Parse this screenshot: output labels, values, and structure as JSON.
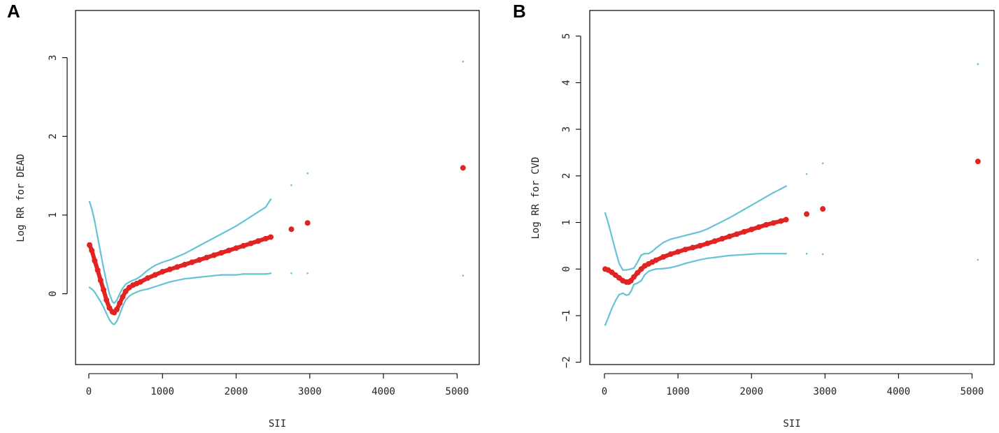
{
  "chart_data": [
    {
      "panel_label": "A",
      "type": "line",
      "xlabel": "SII",
      "ylabel": "Log RR for DEAD",
      "xlim": [
        -180,
        5300
      ],
      "ylim": [
        -0.9,
        3.6
      ],
      "x_ticks": [
        0,
        1000,
        2000,
        3000,
        4000,
        5000
      ],
      "y_ticks": [
        0,
        1,
        2,
        3
      ],
      "grid": false,
      "colors": {
        "estimate": "#e02424",
        "ci": "#66c4d4"
      },
      "series": [
        {
          "role": "estimate",
          "style": "dots",
          "x": [
            10,
            40,
            80,
            120,
            160,
            200,
            240,
            280,
            320,
            345,
            380,
            420,
            460,
            500,
            550,
            600,
            650,
            700,
            800,
            900,
            1000,
            1100,
            1200,
            1300,
            1400,
            1500,
            1600,
            1700,
            1800,
            1900,
            2000,
            2100,
            2200,
            2300,
            2400,
            2470
          ],
          "y": [
            0.62,
            0.55,
            0.42,
            0.3,
            0.17,
            0.05,
            -0.08,
            -0.18,
            -0.23,
            -0.24,
            -0.2,
            -0.12,
            -0.04,
            0.03,
            0.08,
            0.11,
            0.13,
            0.15,
            0.2,
            0.24,
            0.28,
            0.31,
            0.34,
            0.37,
            0.4,
            0.43,
            0.46,
            0.49,
            0.52,
            0.55,
            0.58,
            0.61,
            0.64,
            0.67,
            0.7,
            0.72
          ]
        },
        {
          "role": "upper_ci",
          "style": "dotted-line",
          "x": [
            10,
            40,
            80,
            120,
            160,
            200,
            240,
            280,
            320,
            345,
            380,
            420,
            460,
            500,
            550,
            600,
            650,
            700,
            800,
            900,
            1000,
            1100,
            1200,
            1300,
            1400,
            1500,
            1600,
            1700,
            1800,
            1900,
            2000,
            2100,
            2200,
            2300,
            2400,
            2470
          ],
          "y": [
            1.17,
            1.08,
            0.92,
            0.72,
            0.52,
            0.33,
            0.15,
            0.0,
            -0.1,
            -0.12,
            -0.08,
            0.0,
            0.07,
            0.12,
            0.15,
            0.17,
            0.19,
            0.22,
            0.3,
            0.36,
            0.4,
            0.43,
            0.47,
            0.51,
            0.56,
            0.61,
            0.66,
            0.71,
            0.76,
            0.81,
            0.86,
            0.92,
            0.98,
            1.04,
            1.1,
            1.2
          ]
        },
        {
          "role": "lower_ci",
          "style": "dotted-line",
          "x": [
            10,
            40,
            80,
            120,
            160,
            200,
            240,
            280,
            320,
            345,
            380,
            420,
            460,
            500,
            550,
            600,
            650,
            700,
            800,
            900,
            1000,
            1100,
            1200,
            1300,
            1400,
            1500,
            1600,
            1700,
            1800,
            1900,
            2000,
            2100,
            2200,
            2300,
            2400,
            2470
          ],
          "y": [
            0.08,
            0.06,
            0.02,
            -0.04,
            -0.1,
            -0.17,
            -0.25,
            -0.33,
            -0.38,
            -0.39,
            -0.35,
            -0.26,
            -0.16,
            -0.08,
            -0.03,
            0.0,
            0.02,
            0.04,
            0.06,
            0.09,
            0.12,
            0.15,
            0.17,
            0.19,
            0.2,
            0.21,
            0.22,
            0.23,
            0.24,
            0.24,
            0.24,
            0.25,
            0.25,
            0.25,
            0.25,
            0.26
          ]
        },
        {
          "role": "estimate",
          "style": "dots",
          "x": [
            2750,
            2970,
            5080
          ],
          "y": [
            0.82,
            0.9,
            1.6
          ]
        },
        {
          "role": "upper_ci",
          "style": "dots-small",
          "x": [
            2750,
            2970,
            5080
          ],
          "y": [
            1.38,
            1.53,
            2.95
          ]
        },
        {
          "role": "lower_ci",
          "style": "dots-small",
          "x": [
            2750,
            2970,
            5080
          ],
          "y": [
            0.26,
            0.26,
            0.23
          ]
        }
      ]
    },
    {
      "panel_label": "B",
      "type": "line",
      "xlabel": "SII",
      "ylabel": "Log RR for CVD",
      "xlim": [
        -200,
        5300
      ],
      "ylim": [
        -2.05,
        5.55
      ],
      "x_ticks": [
        0,
        1000,
        2000,
        3000,
        4000,
        5000
      ],
      "y_ticks": [
        -2,
        -1,
        0,
        1,
        2,
        3,
        4,
        5
      ],
      "y_tick_labels": [
        "−2",
        "−1",
        "0",
        "1",
        "2",
        "3",
        "4",
        "5"
      ],
      "grid": false,
      "colors": {
        "estimate": "#e02424",
        "ci": "#66c4d4"
      },
      "series": [
        {
          "role": "estimate",
          "style": "dots",
          "x": [
            10,
            50,
            100,
            150,
            200,
            250,
            300,
            330,
            360,
            400,
            450,
            500,
            550,
            600,
            650,
            700,
            800,
            900,
            1000,
            1100,
            1200,
            1300,
            1400,
            1500,
            1600,
            1700,
            1800,
            1900,
            2000,
            2100,
            2200,
            2300,
            2400,
            2470
          ],
          "y": [
            0.0,
            -0.02,
            -0.07,
            -0.13,
            -0.19,
            -0.25,
            -0.28,
            -0.28,
            -0.25,
            -0.17,
            -0.08,
            0.0,
            0.07,
            0.11,
            0.15,
            0.19,
            0.26,
            0.32,
            0.37,
            0.42,
            0.46,
            0.5,
            0.55,
            0.6,
            0.65,
            0.7,
            0.75,
            0.8,
            0.85,
            0.9,
            0.95,
            0.99,
            1.03,
            1.06
          ]
        },
        {
          "role": "upper_ci",
          "style": "dotted-line",
          "x": [
            10,
            50,
            100,
            150,
            200,
            250,
            300,
            330,
            360,
            400,
            450,
            500,
            550,
            600,
            650,
            700,
            800,
            900,
            1000,
            1100,
            1200,
            1300,
            1400,
            1500,
            1600,
            1700,
            1800,
            1900,
            2000,
            2100,
            2200,
            2300,
            2400,
            2470
          ],
          "y": [
            1.2,
            1.0,
            0.7,
            0.4,
            0.12,
            -0.02,
            -0.02,
            -0.01,
            0.0,
            0.02,
            0.15,
            0.3,
            0.33,
            0.33,
            0.38,
            0.45,
            0.57,
            0.64,
            0.68,
            0.72,
            0.76,
            0.8,
            0.86,
            0.94,
            1.02,
            1.1,
            1.19,
            1.28,
            1.37,
            1.46,
            1.55,
            1.64,
            1.72,
            1.78
          ]
        },
        {
          "role": "lower_ci",
          "style": "dotted-line",
          "x": [
            10,
            50,
            100,
            150,
            200,
            250,
            300,
            330,
            360,
            400,
            450,
            500,
            550,
            600,
            650,
            700,
            800,
            900,
            1000,
            1100,
            1200,
            1300,
            1400,
            1500,
            1600,
            1700,
            1800,
            1900,
            2000,
            2100,
            2200,
            2300,
            2400,
            2470
          ],
          "y": [
            -1.2,
            -1.05,
            -0.85,
            -0.68,
            -0.55,
            -0.52,
            -0.56,
            -0.55,
            -0.48,
            -0.33,
            -0.3,
            -0.25,
            -0.12,
            -0.05,
            -0.02,
            0.0,
            0.01,
            0.03,
            0.07,
            0.12,
            0.16,
            0.2,
            0.23,
            0.25,
            0.27,
            0.29,
            0.3,
            0.31,
            0.32,
            0.33,
            0.33,
            0.33,
            0.33,
            0.33
          ]
        },
        {
          "role": "estimate",
          "style": "dots",
          "x": [
            2750,
            2970,
            5080
          ],
          "y": [
            1.18,
            1.29,
            2.31
          ]
        },
        {
          "role": "upper_ci",
          "style": "dots-small",
          "x": [
            2750,
            2970,
            5080
          ],
          "y": [
            2.04,
            2.27,
            4.4
          ]
        },
        {
          "role": "lower_ci",
          "style": "dots-small",
          "x": [
            2750,
            2970,
            5080
          ],
          "y": [
            0.33,
            0.32,
            0.2
          ]
        }
      ]
    }
  ]
}
